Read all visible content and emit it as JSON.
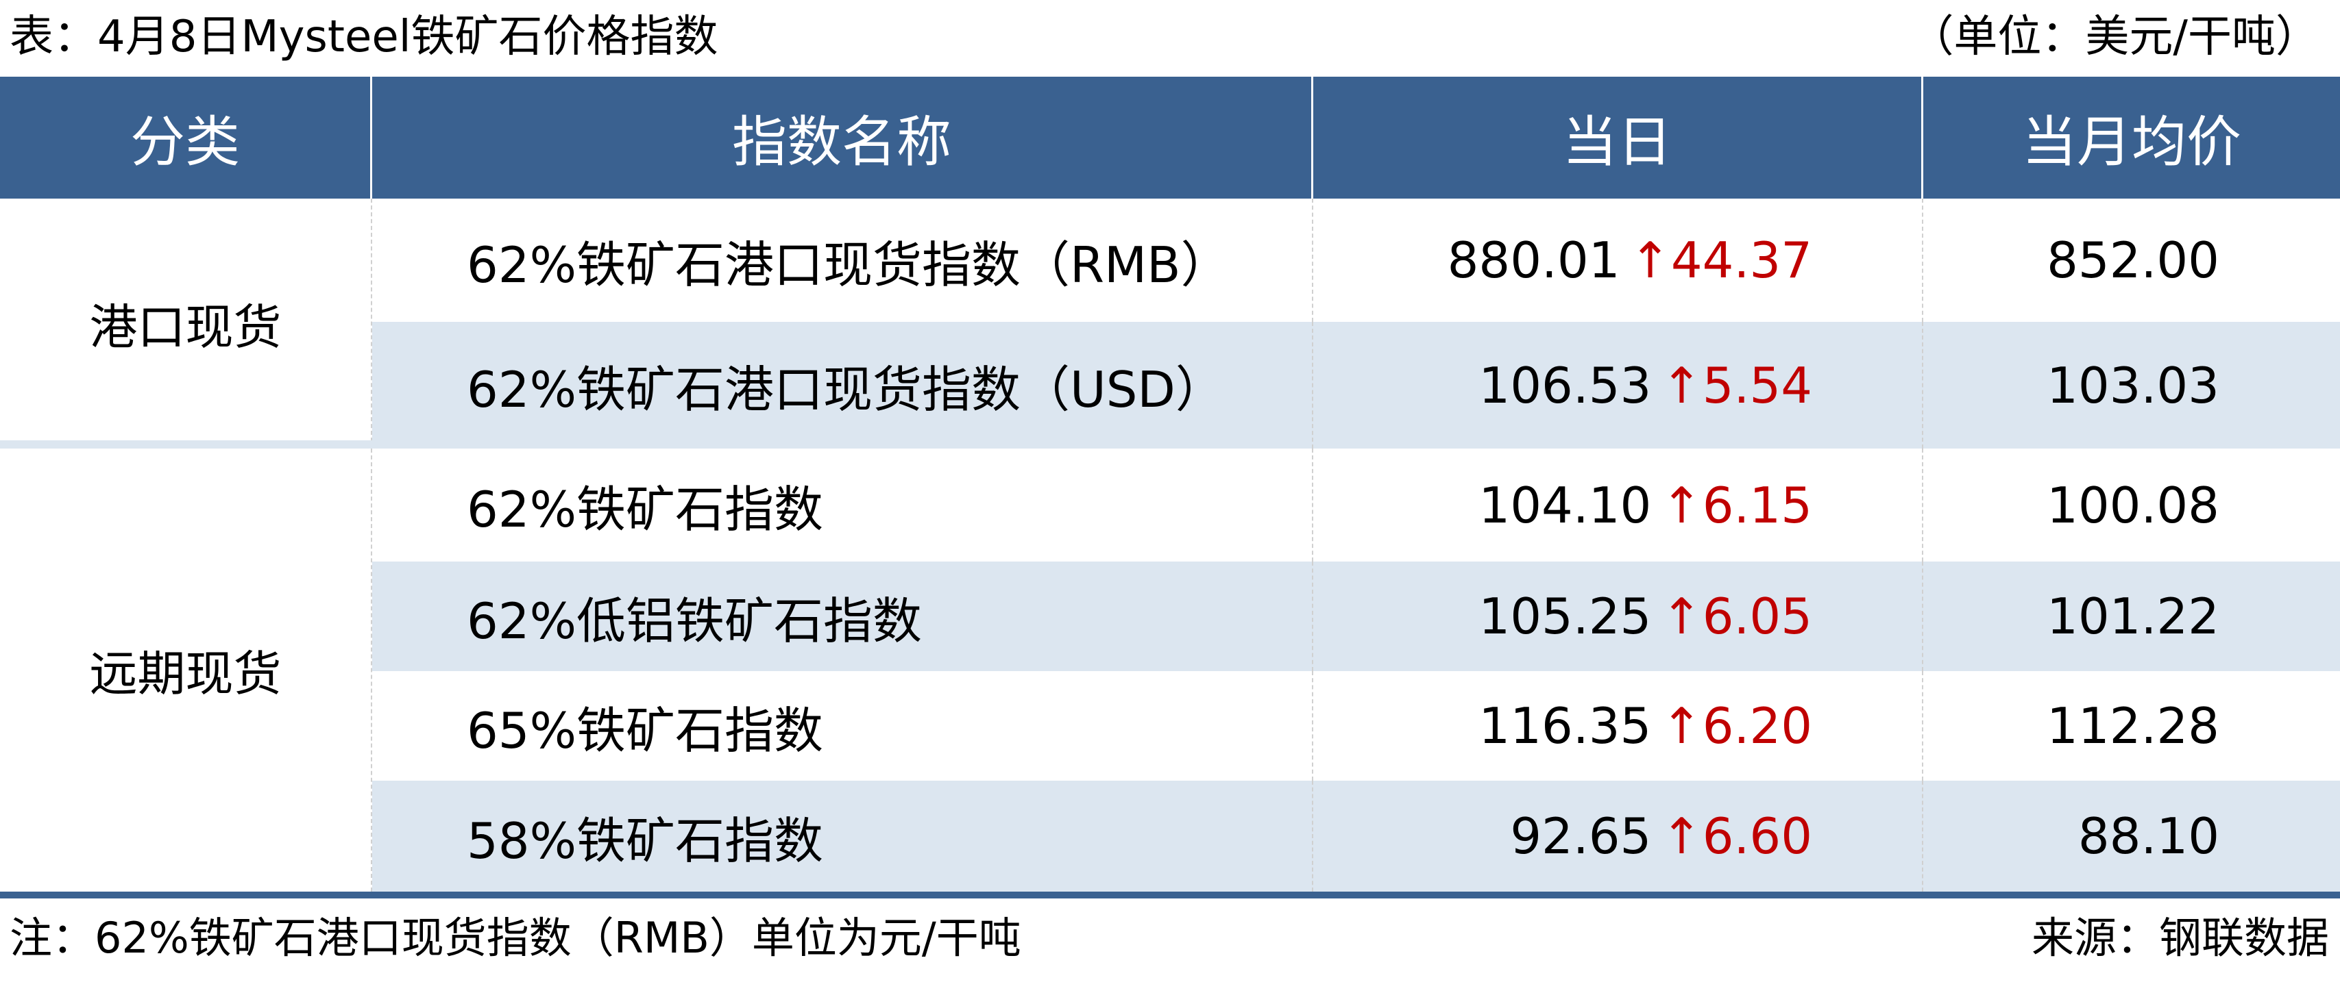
{
  "title": "表：4月8日Mysteel铁矿石价格指数",
  "unit": "（单位：美元/干吨）",
  "headers": [
    "分类",
    "指数名称",
    "当日",
    "当月均价"
  ],
  "colors": {
    "header_bg": "#3A6190",
    "alt_row_bg": "#DCE6F0",
    "up_color": "#C00000"
  },
  "arrow_icon": "arrow-up",
  "arrow_glyph": "↑",
  "groups": [
    {
      "category": "港口现货",
      "rows": [
        {
          "name": "62%铁矿石港口现货指数（RMB）",
          "day": "880.01",
          "change": "44.37",
          "avg": "852.00"
        },
        {
          "name": "62%铁矿石港口现货指数（USD）",
          "day": "106.53",
          "change": "5.54",
          "avg": "103.03"
        }
      ]
    },
    {
      "category": "远期现货",
      "rows": [
        {
          "name": "62%铁矿石指数",
          "day": "104.10",
          "change": "6.15",
          "avg": "100.08"
        },
        {
          "name": "62%低铝铁矿石指数",
          "day": "105.25",
          "change": "6.05",
          "avg": "101.22"
        },
        {
          "name": "65%铁矿石指数",
          "day": "116.35",
          "change": "6.20",
          "avg": "112.28"
        },
        {
          "name": "58%铁矿石指数",
          "day": "92.65",
          "change": "6.60",
          "avg": "88.10"
        }
      ]
    }
  ],
  "note": "注：62%铁矿石港口现货指数（RMB）单位为元/干吨",
  "source": "来源：钢联数据"
}
